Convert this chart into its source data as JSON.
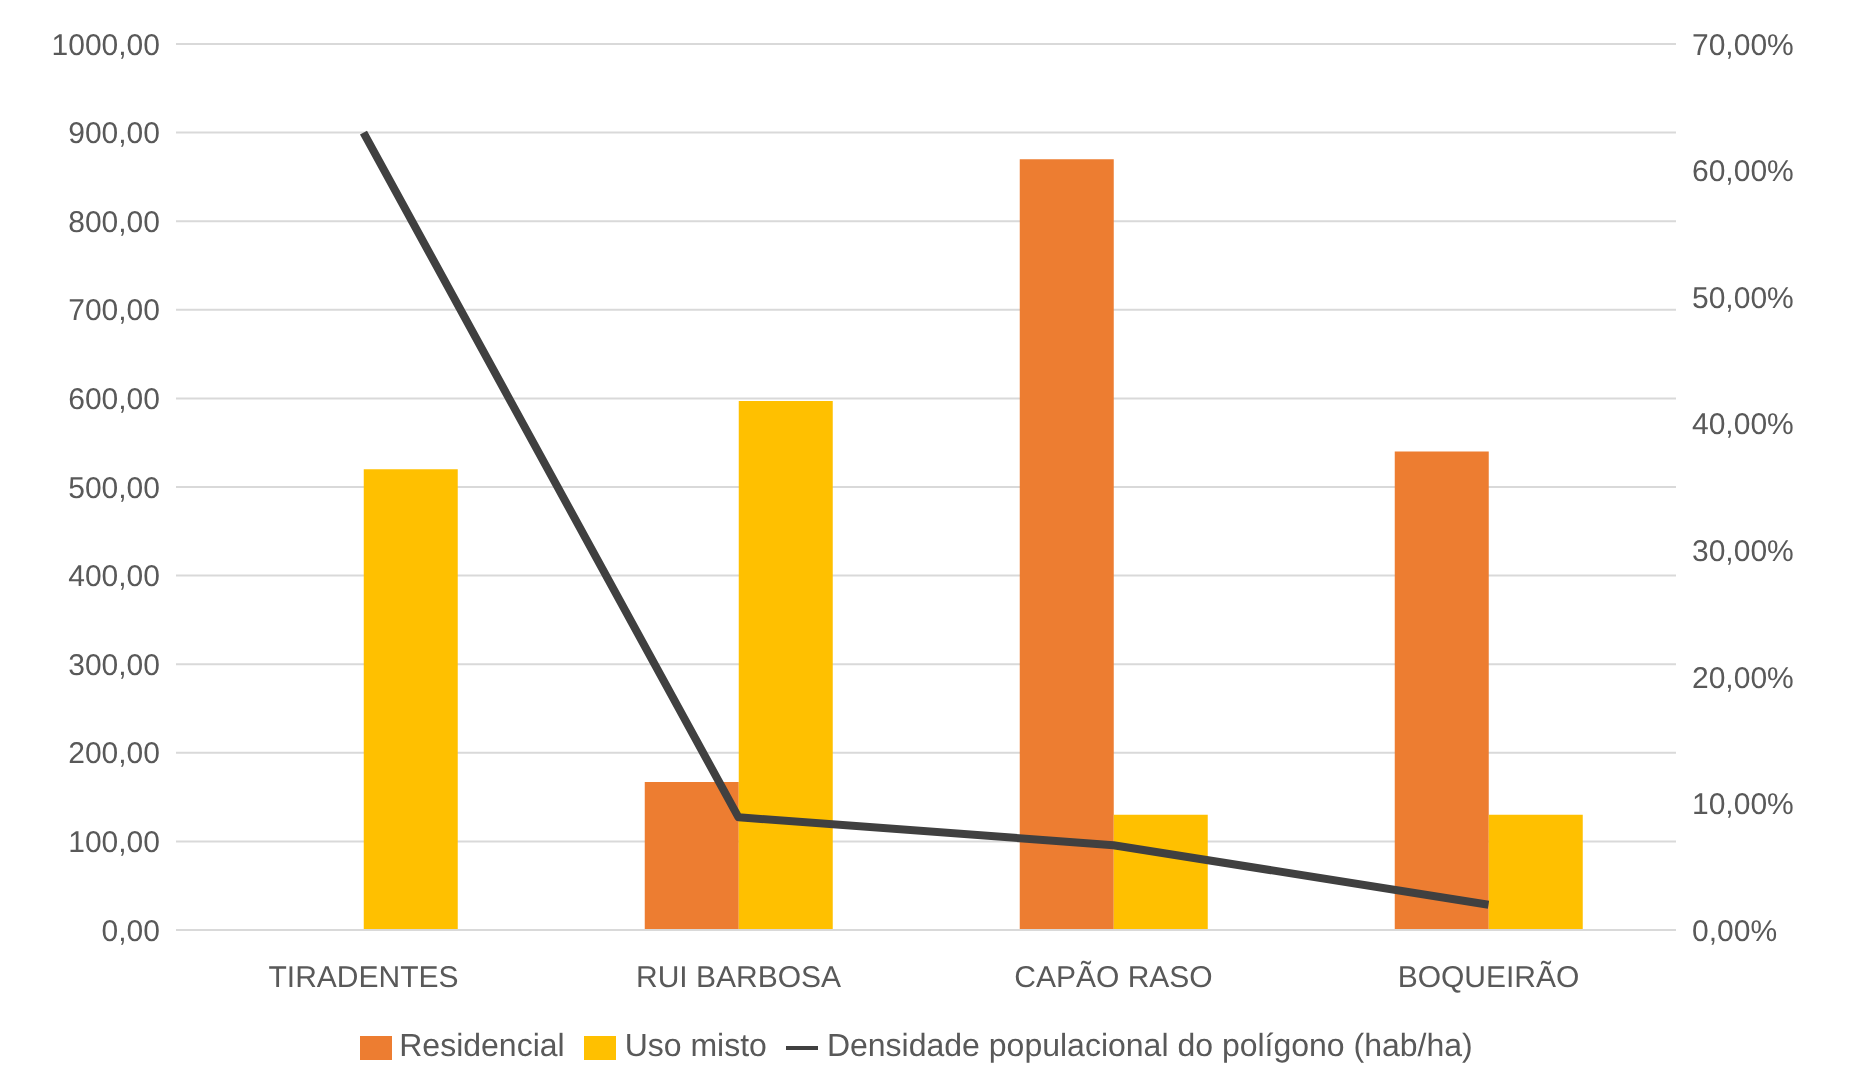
{
  "chart_data": {
    "type": "bar",
    "categories": [
      "TIRADENTES",
      "RUI BARBOSA",
      "CAPÃO RASO",
      "BOQUEIRÃO"
    ],
    "series": [
      {
        "name": "Residencial",
        "color": "#ed7d31",
        "values": [
          0,
          167,
          870,
          540
        ]
      },
      {
        "name": "Uso misto",
        "color": "#ffc000",
        "values": [
          520,
          597,
          130,
          130
        ]
      },
      {
        "name": "Densidade populacional do polígono (hab/ha)",
        "color": "#404040",
        "type": "line",
        "axis": "y2",
        "values": [
          63,
          8.9,
          6.7,
          2.0
        ]
      }
    ],
    "ylim": [
      0,
      1000
    ],
    "yticks": [
      {
        "value": 0,
        "label": "0,00"
      },
      {
        "value": 100,
        "label": "100,00"
      },
      {
        "value": 200,
        "label": "200,00"
      },
      {
        "value": 300,
        "label": "300,00"
      },
      {
        "value": 400,
        "label": "400,00"
      },
      {
        "value": 500,
        "label": "500,00"
      },
      {
        "value": 600,
        "label": "600,00"
      },
      {
        "value": 700,
        "label": "700,00"
      },
      {
        "value": 800,
        "label": "800,00"
      },
      {
        "value": 900,
        "label": "900,00"
      },
      {
        "value": 1000,
        "label": "1000,00"
      }
    ],
    "y2lim": [
      0,
      70
    ],
    "y2ticks": [
      {
        "value": 0,
        "label": "0,00%"
      },
      {
        "value": 10,
        "label": "10,00%"
      },
      {
        "value": 20,
        "label": "20,00%"
      },
      {
        "value": 30,
        "label": "30,00%"
      },
      {
        "value": 40,
        "label": "40,00%"
      },
      {
        "value": 50,
        "label": "50,00%"
      },
      {
        "value": 60,
        "label": "60,00%"
      },
      {
        "value": 70,
        "label": "70,00%"
      }
    ],
    "grid": "y",
    "legend": "bottom",
    "marker": "none",
    "line_style": "solid"
  }
}
